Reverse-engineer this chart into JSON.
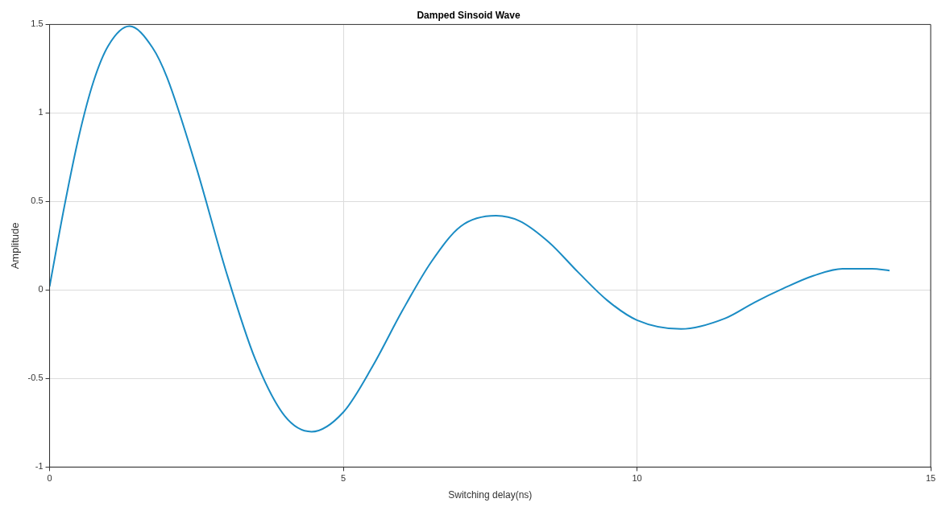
{
  "chart_data": {
    "type": "line",
    "title": "Damped Sinsoid Wave",
    "xlabel": "Switching delay(ns)",
    "ylabel": "Amplitude",
    "x": [
      0,
      0.25,
      0.5,
      0.75,
      1,
      1.36,
      1.75,
      2,
      2.5,
      3,
      3.5,
      4,
      4.46,
      5,
      5.5,
      6,
      6.5,
      7,
      7.6,
      8,
      8.5,
      9,
      9.5,
      10,
      10.75,
      11.5,
      12,
      12.5,
      13,
      13.5,
      14,
      14.3
    ],
    "series": [
      {
        "color": "#1a8cc4",
        "values": [
          0.02,
          0.47,
          0.87,
          1.18,
          1.38,
          1.49,
          1.37,
          1.2,
          0.69,
          0.11,
          -0.39,
          -0.71,
          -0.8,
          -0.69,
          -0.43,
          -0.12,
          0.16,
          0.36,
          0.42,
          0.39,
          0.27,
          0.1,
          -0.06,
          -0.17,
          -0.22,
          -0.16,
          -0.07,
          0.01,
          0.08,
          0.12,
          0.12,
          0.11
        ]
      }
    ],
    "xlim": [
      0,
      15
    ],
    "xticks": [
      0,
      5,
      10,
      15
    ],
    "ylim": [
      -1,
      1.5
    ],
    "yticks": [
      -1,
      -0.5,
      0,
      0.5,
      1,
      1.5
    ],
    "grid": true,
    "legend": false,
    "marker": "none",
    "line_style": "solid"
  }
}
